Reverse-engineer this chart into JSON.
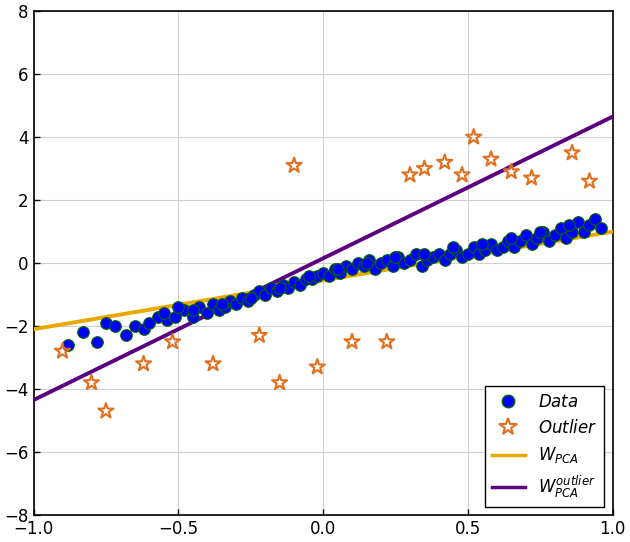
{
  "xlim": [
    -1,
    1
  ],
  "ylim": [
    -8,
    8
  ],
  "xticks": [
    -1,
    -0.5,
    0,
    0.5,
    1
  ],
  "yticks": [
    -8,
    -6,
    -4,
    -2,
    0,
    2,
    4,
    6,
    8
  ],
  "data_points": [
    [
      -0.88,
      -2.6
    ],
    [
      -0.83,
      -2.2
    ],
    [
      -0.78,
      -2.5
    ],
    [
      -0.75,
      -1.9
    ],
    [
      -0.72,
      -2.0
    ],
    [
      -0.68,
      -2.3
    ],
    [
      -0.65,
      -2.0
    ],
    [
      -0.62,
      -2.1
    ],
    [
      -0.6,
      -1.9
    ],
    [
      -0.57,
      -1.7
    ],
    [
      -0.54,
      -1.8
    ],
    [
      -0.51,
      -1.7
    ],
    [
      -0.48,
      -1.5
    ],
    [
      -0.45,
      -1.7
    ],
    [
      -0.43,
      -1.4
    ],
    [
      -0.4,
      -1.6
    ],
    [
      -0.38,
      -1.3
    ],
    [
      -0.36,
      -1.5
    ],
    [
      -0.34,
      -1.4
    ],
    [
      -0.32,
      -1.2
    ],
    [
      -0.3,
      -1.3
    ],
    [
      -0.28,
      -1.1
    ],
    [
      -0.26,
      -1.2
    ],
    [
      -0.24,
      -1.0
    ],
    [
      -0.22,
      -0.9
    ],
    [
      -0.2,
      -1.0
    ],
    [
      -0.18,
      -0.8
    ],
    [
      -0.16,
      -0.9
    ],
    [
      -0.14,
      -0.7
    ],
    [
      -0.12,
      -0.8
    ],
    [
      -0.1,
      -0.6
    ],
    [
      -0.08,
      -0.7
    ],
    [
      -0.06,
      -0.5
    ],
    [
      -0.04,
      -0.5
    ],
    [
      -0.02,
      -0.4
    ],
    [
      0.0,
      -0.3
    ],
    [
      0.02,
      -0.4
    ],
    [
      0.04,
      -0.2
    ],
    [
      0.06,
      -0.3
    ],
    [
      0.08,
      -0.1
    ],
    [
      0.1,
      -0.2
    ],
    [
      0.12,
      0.0
    ],
    [
      0.14,
      -0.1
    ],
    [
      0.16,
      0.1
    ],
    [
      0.18,
      -0.2
    ],
    [
      0.2,
      0.0
    ],
    [
      0.22,
      0.1
    ],
    [
      0.24,
      -0.1
    ],
    [
      0.26,
      0.2
    ],
    [
      0.28,
      0.0
    ],
    [
      0.3,
      0.1
    ],
    [
      0.32,
      0.3
    ],
    [
      0.34,
      -0.1
    ],
    [
      0.36,
      0.1
    ],
    [
      0.38,
      0.2
    ],
    [
      0.4,
      0.3
    ],
    [
      0.42,
      0.1
    ],
    [
      0.44,
      0.3
    ],
    [
      0.46,
      0.4
    ],
    [
      0.48,
      0.2
    ],
    [
      0.5,
      0.3
    ],
    [
      0.52,
      0.5
    ],
    [
      0.54,
      0.3
    ],
    [
      0.56,
      0.4
    ],
    [
      0.58,
      0.6
    ],
    [
      0.6,
      0.4
    ],
    [
      0.62,
      0.5
    ],
    [
      0.64,
      0.7
    ],
    [
      0.66,
      0.5
    ],
    [
      0.68,
      0.7
    ],
    [
      0.7,
      0.9
    ],
    [
      0.72,
      0.6
    ],
    [
      0.74,
      0.8
    ],
    [
      0.76,
      1.0
    ],
    [
      0.78,
      0.7
    ],
    [
      0.8,
      0.9
    ],
    [
      0.82,
      1.1
    ],
    [
      0.84,
      0.8
    ],
    [
      0.86,
      1.0
    ],
    [
      0.88,
      1.3
    ],
    [
      0.9,
      1.0
    ],
    [
      0.92,
      1.2
    ],
    [
      0.94,
      1.4
    ],
    [
      0.96,
      1.1
    ],
    [
      -0.55,
      -1.6
    ],
    [
      -0.5,
      -1.4
    ],
    [
      -0.45,
      -1.5
    ],
    [
      -0.35,
      -1.3
    ],
    [
      -0.25,
      -1.1
    ],
    [
      -0.15,
      -0.8
    ],
    [
      -0.05,
      -0.4
    ],
    [
      0.05,
      -0.2
    ],
    [
      0.15,
      0.0
    ],
    [
      0.25,
      0.2
    ],
    [
      0.35,
      0.3
    ],
    [
      0.45,
      0.5
    ],
    [
      0.55,
      0.6
    ],
    [
      0.65,
      0.8
    ],
    [
      0.75,
      1.0
    ],
    [
      0.85,
      1.2
    ]
  ],
  "outlier_points": [
    [
      -0.9,
      -2.8
    ],
    [
      -0.8,
      -3.8
    ],
    [
      -0.75,
      -4.7
    ],
    [
      -0.62,
      -3.2
    ],
    [
      -0.52,
      -2.5
    ],
    [
      -0.38,
      -3.2
    ],
    [
      -0.22,
      -2.3
    ],
    [
      -0.15,
      -3.8
    ],
    [
      -0.02,
      -3.3
    ],
    [
      0.1,
      -2.5
    ],
    [
      0.22,
      -2.5
    ],
    [
      -0.1,
      3.1
    ],
    [
      0.3,
      2.8
    ],
    [
      0.35,
      3.0
    ],
    [
      0.42,
      3.2
    ],
    [
      0.48,
      2.8
    ],
    [
      0.52,
      4.0
    ],
    [
      0.58,
      3.3
    ],
    [
      0.65,
      2.9
    ],
    [
      0.72,
      2.7
    ],
    [
      0.86,
      3.5
    ],
    [
      0.92,
      2.6
    ]
  ],
  "data_color": "#0000ff",
  "data_edge_color": "#006600",
  "data_marker_size": 70,
  "outlier_color": "#e07020",
  "outlier_marker_size": 130,
  "outlier_linewidth": 1.5,
  "line_pca_color": "#e8a800",
  "line_pca_slope": 1.55,
  "line_pca_intercept": -0.55,
  "line_pca_outlier_color": "#5b0080",
  "line_pca_outlier_slope": 4.5,
  "line_pca_outlier_intercept": 0.15,
  "line_width": 2.8
}
